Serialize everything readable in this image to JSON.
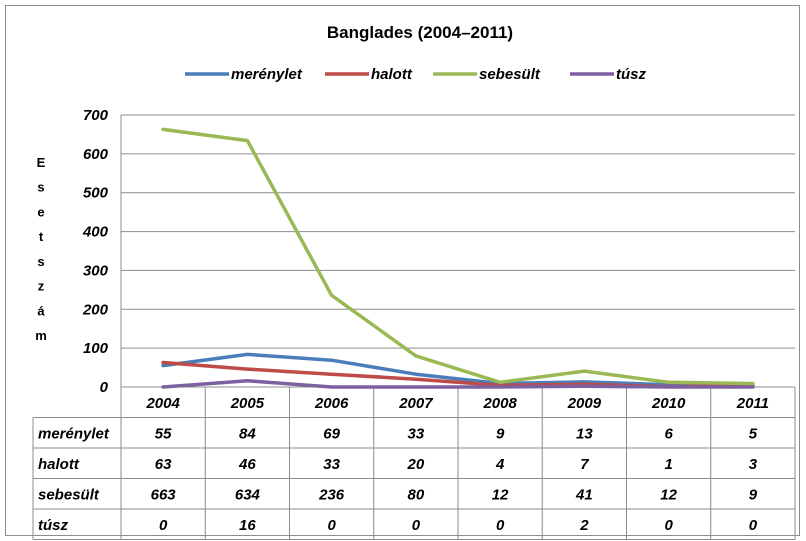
{
  "chart_data": {
    "type": "line",
    "title": "Banglades (2004–2011)",
    "ylabel": "Esetszám",
    "ylim": [
      0,
      700
    ],
    "yticks": [
      0,
      100,
      200,
      300,
      400,
      500,
      600,
      700
    ],
    "grid": true,
    "legend_position": "top",
    "categories": [
      "2004",
      "2005",
      "2006",
      "2007",
      "2008",
      "2009",
      "2010",
      "2011"
    ],
    "series": [
      {
        "name": "merénylet",
        "color": "#4a7ebb",
        "values": [
          55,
          84,
          69,
          33,
          9,
          13,
          6,
          5
        ]
      },
      {
        "name": "halott",
        "color": "#be4b48",
        "values": [
          63,
          46,
          33,
          20,
          4,
          7,
          1,
          3
        ]
      },
      {
        "name": "sebesült",
        "color": "#98b954",
        "values": [
          663,
          634,
          236,
          80,
          12,
          41,
          12,
          9
        ]
      },
      {
        "name": "túsz",
        "color": "#7d60a0",
        "values": [
          0,
          16,
          0,
          0,
          0,
          2,
          0,
          0
        ]
      }
    ]
  }
}
